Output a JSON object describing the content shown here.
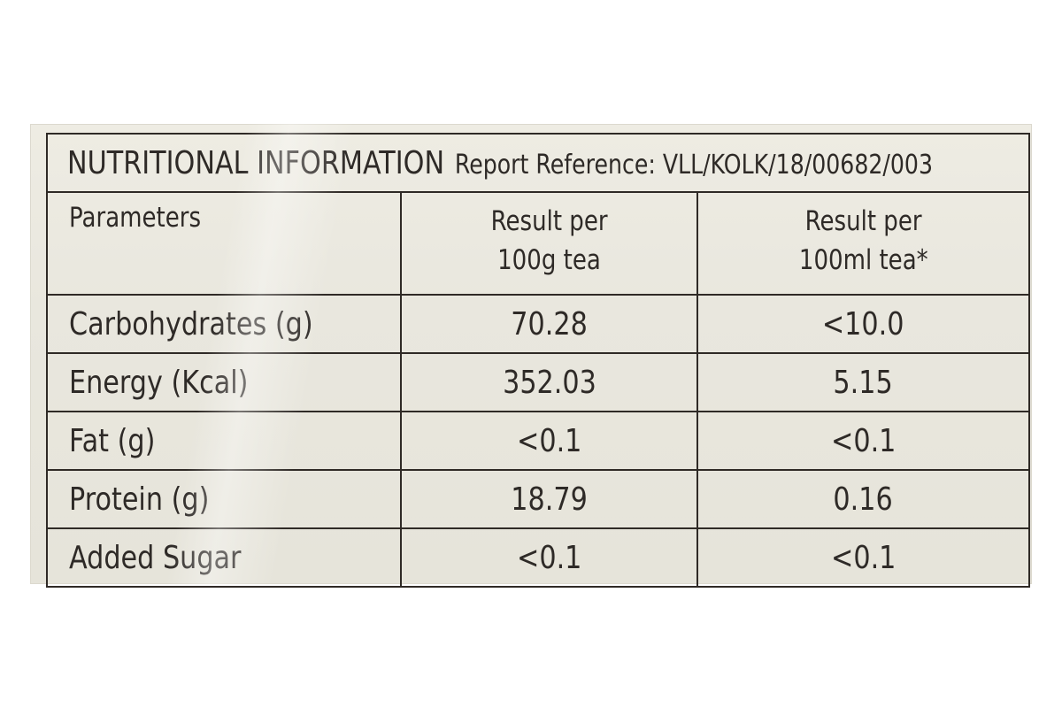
{
  "panel": {
    "title": "NUTRITIONAL INFORMATION",
    "reference": "Report Reference:  VLL/KOLK/18/00682/003"
  },
  "table": {
    "headers": {
      "parameter": "Parameters",
      "per_100g_line1": "Result per",
      "per_100g_line2": "100g tea",
      "per_100ml_line1": "Result per",
      "per_100ml_line2": "100ml tea*"
    },
    "rows": [
      {
        "parameter": "Carbohydrates (g)",
        "per_100g": "70.28",
        "per_100ml": "<10.0"
      },
      {
        "parameter": "Energy (Kcal)",
        "per_100g": "352.03",
        "per_100ml": "5.15"
      },
      {
        "parameter": "Fat (g)",
        "per_100g": "<0.1",
        "per_100ml": "<0.1"
      },
      {
        "parameter": "Protein (g)",
        "per_100g": "18.79",
        "per_100ml": "0.16"
      },
      {
        "parameter": "Added Sugar",
        "per_100g": "<0.1",
        "per_100ml": "<0.1"
      }
    ]
  },
  "colors": {
    "paper": "#e9e7de",
    "ink": "#2e2a27"
  }
}
